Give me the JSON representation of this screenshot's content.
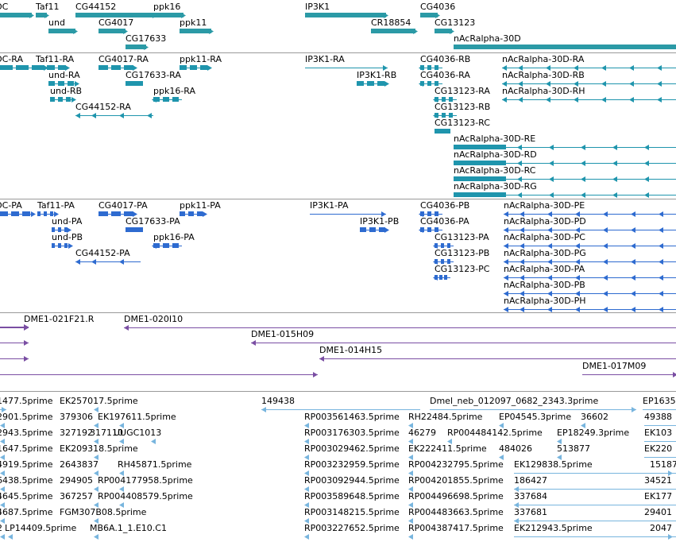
{
  "colors": {
    "gene": "#2b9aa6",
    "transcript": "#1f95ad",
    "cds": "#2e6bd0",
    "clone": "#7a4ea3",
    "est": "#78b5de",
    "separator": "#9a9a9a"
  },
  "tracks": {
    "genes": {
      "items": [
        {
          "label": "OC",
          "style": "bar"
        },
        {
          "label": "Taf11",
          "style": "bar"
        },
        {
          "label": "CG44152",
          "style": "bar"
        },
        {
          "label": "ppk16",
          "style": "bar"
        },
        {
          "label": "IP3K1",
          "style": "bar"
        },
        {
          "label": "CG4036",
          "style": "bar"
        },
        {
          "label": "und",
          "style": "bar"
        },
        {
          "label": "CG4017",
          "style": "bar"
        },
        {
          "label": "ppk11",
          "style": "bar"
        },
        {
          "label": "CR18854",
          "style": "bar"
        },
        {
          "label": "CG13123",
          "style": "bar"
        },
        {
          "label": "CG17633",
          "style": "bar"
        },
        {
          "label": "nAcRalpha-30D",
          "style": "bar"
        }
      ]
    },
    "transcripts": {
      "items": [
        {
          "label": "OC-RA",
          "style": "exons-right"
        },
        {
          "label": "Taf11-RA",
          "style": "exons-right"
        },
        {
          "label": "CG4017-RA",
          "style": "exons-right"
        },
        {
          "label": "ppk11-RA",
          "style": "exons-right"
        },
        {
          "label": "IP3K1-RA",
          "style": "line-right"
        },
        {
          "label": "CG4036-RB",
          "style": "exons-left"
        },
        {
          "label": "nAcRalpha-30D-RA",
          "style": "line-left"
        },
        {
          "label": "und-RA",
          "style": "exons-right"
        },
        {
          "label": "CG17633-RA",
          "style": "bar"
        },
        {
          "label": "IP3K1-RB",
          "style": "exons-right"
        },
        {
          "label": "CG4036-RA",
          "style": "exons-left"
        },
        {
          "label": "nAcRalpha-30D-RB",
          "style": "line-left"
        },
        {
          "label": "und-RB",
          "style": "exons-right"
        },
        {
          "label": "ppk16-RA",
          "style": "exons-left"
        },
        {
          "label": "CG13123-RA",
          "style": "exons-left"
        },
        {
          "label": "nAcRalpha-30D-RH",
          "style": "line-left"
        },
        {
          "label": "CG44152-RA",
          "style": "line-left"
        },
        {
          "label": "CG13123-RB",
          "style": "exons-left"
        },
        {
          "label": "CG13123-RC",
          "style": "bar"
        },
        {
          "label": "nAcRalpha-30D-RE",
          "style": "bar-line-left"
        },
        {
          "label": "nAcRalpha-30D-RD",
          "style": "bar-line-left"
        },
        {
          "label": "nAcRalpha-30D-RC",
          "style": "bar-line-left"
        },
        {
          "label": "nAcRalpha-30D-RG",
          "style": "bar-line-left"
        }
      ]
    },
    "proteins": {
      "items": [
        {
          "label": "OC-PA",
          "style": "exons-right"
        },
        {
          "label": "Taf11-PA",
          "style": "exons-right"
        },
        {
          "label": "CG4017-PA",
          "style": "exons-right"
        },
        {
          "label": "ppk11-PA",
          "style": "exons-right"
        },
        {
          "label": "IP3K1-PA",
          "style": "line-right"
        },
        {
          "label": "CG4036-PB",
          "style": "exons-left"
        },
        {
          "label": "nAcRalpha-30D-PE",
          "style": "line-left"
        },
        {
          "label": "und-PA",
          "style": "exons-right"
        },
        {
          "label": "CG17633-PA",
          "style": "bar"
        },
        {
          "label": "IP3K1-PB",
          "style": "exons-right"
        },
        {
          "label": "CG4036-PA",
          "style": "exons-left"
        },
        {
          "label": "nAcRalpha-30D-PD",
          "style": "line-left"
        },
        {
          "label": "und-PB",
          "style": "exons-right"
        },
        {
          "label": "ppk16-PA",
          "style": "exons-left"
        },
        {
          "label": "CG13123-PA",
          "style": "exons-left"
        },
        {
          "label": "nAcRalpha-30D-PC",
          "style": "line-left"
        },
        {
          "label": "CG44152-PA",
          "style": "line-left"
        },
        {
          "label": "CG13123-PB",
          "style": "exons-left"
        },
        {
          "label": "nAcRalpha-30D-PG",
          "style": "line-left"
        },
        {
          "label": "CG13123-PC",
          "style": "exons-left"
        },
        {
          "label": "nAcRalpha-30D-PA",
          "style": "line-left"
        },
        {
          "label": "nAcRalpha-30D-PB",
          "style": "line-left"
        },
        {
          "label": "nAcRalpha-30D-PH",
          "style": "line-left"
        }
      ]
    },
    "clones": {
      "items": [
        {
          "label": "",
          "style": "line-right"
        },
        {
          "label": "DME1-021F21.R",
          "style": "line-right"
        },
        {
          "label": "DME1-020I10",
          "style": "line-left"
        },
        {
          "label": "",
          "style": "line-right"
        },
        {
          "label": "DME1-015H09",
          "style": "line-left"
        },
        {
          "label": "",
          "style": "line-right"
        },
        {
          "label": "DME1-014H15",
          "style": "line-left"
        },
        {
          "label": "",
          "style": "line-right"
        },
        {
          "label": "DME1-017M09",
          "style": "line-right"
        }
      ]
    },
    "ests": {
      "items": [
        {
          "label": "1477.5prime",
          "style": "line-right"
        },
        {
          "label": "EK257017.5prime",
          "style": "tick-left"
        },
        {
          "label": "149438",
          "style": "line-left"
        },
        {
          "label": "Dmel_neb_012097_0682_2343.3prime",
          "style": "line-right"
        },
        {
          "label": "EP1635",
          "style": "line-right"
        },
        {
          "label": "2901.5prime",
          "style": "tick-left"
        },
        {
          "label": "379306",
          "style": "tick-left"
        },
        {
          "label": "EK197611.5prime",
          "style": "tick-left"
        },
        {
          "label": "RP003561463.5prime",
          "style": "tick-left"
        },
        {
          "label": "RH22484.5prime",
          "style": "tick-left"
        },
        {
          "label": "EP04545.3prime",
          "style": "tick-left"
        },
        {
          "label": "36602",
          "style": "tick-left"
        },
        {
          "label": "49388",
          "style": "line-right"
        },
        {
          "label": "2943.5prime",
          "style": "tick-left"
        },
        {
          "label": "327192",
          "style": "tick-left"
        },
        {
          "label": "317110",
          "style": "tick-left"
        },
        {
          "label": "UUGC1013",
          "style": "tick-left"
        },
        {
          "label": "RP003176303.5prime",
          "style": "tick-left"
        },
        {
          "label": "46279",
          "style": "tick-left"
        },
        {
          "label": "RP004484142.5prime",
          "style": "tick-left"
        },
        {
          "label": "EP18249.3prime",
          "style": "tick-left"
        },
        {
          "label": "EK103",
          "style": "line-right"
        },
        {
          "label": "1647.5prime",
          "style": "tick-left"
        },
        {
          "label": "EK209318.5prime",
          "style": "tick-left"
        },
        {
          "label": "RP003029462.5prime",
          "style": "tick-left"
        },
        {
          "label": "EK222411.5prime",
          "style": "tick-left"
        },
        {
          "label": "484026",
          "style": "tick-left"
        },
        {
          "label": "513877",
          "style": "tick-left"
        },
        {
          "label": "EK220",
          "style": "line-right"
        },
        {
          "label": "4919.5prime",
          "style": "tick-left"
        },
        {
          "label": "2643837",
          "style": "tick-left"
        },
        {
          "label": "RH45871.5prime",
          "style": "tick-left"
        },
        {
          "label": "RP003232959.5prime",
          "style": "tick-left"
        },
        {
          "label": "RP004232795.5prime",
          "style": "tick-left"
        },
        {
          "label": "EK129838.5prime",
          "style": "line-right"
        },
        {
          "label": "15187",
          "style": "line-right"
        },
        {
          "label": "6438.5prime",
          "style": "tick-left"
        },
        {
          "label": "294905",
          "style": "tick-left"
        },
        {
          "label": "RP004177958.5prime",
          "style": "tick-left"
        },
        {
          "label": "RP003092944.5prime",
          "style": "tick-left"
        },
        {
          "label": "RP004201855.5prime",
          "style": "tick-left"
        },
        {
          "label": "186427",
          "style": "line-left"
        },
        {
          "label": "34521",
          "style": "line-right"
        },
        {
          "label": "4645.5prime",
          "style": "tick-left"
        },
        {
          "label": "367257",
          "style": "tick-left"
        },
        {
          "label": "RP004408579.5prime",
          "style": "tick-left"
        },
        {
          "label": "RP003589648.5prime",
          "style": "tick-left"
        },
        {
          "label": "RP004496698.5prime",
          "style": "tick-left"
        },
        {
          "label": "337684",
          "style": "line-left"
        },
        {
          "label": "EK177",
          "style": "line-right"
        },
        {
          "label": "4687.5prime",
          "style": "tick-left"
        },
        {
          "label": "FGM307B08.5prime",
          "style": "tick-left"
        },
        {
          "label": "RP003148215.5prime",
          "style": "tick-left"
        },
        {
          "label": "RP004483663.5prime",
          "style": "tick-left"
        },
        {
          "label": "337681",
          "style": "line-left"
        },
        {
          "label": "29401",
          "style": "line-right"
        },
        {
          "label": "2",
          "style": "tick-left"
        },
        {
          "label": "LP14409.5prime",
          "style": "tick-left"
        },
        {
          "label": "MB6A.1_1.E10.C1",
          "style": "tick-left"
        },
        {
          "label": "RP003227652.5prime",
          "style": "tick-left"
        },
        {
          "label": "RP004387417.5prime",
          "style": "tick-left"
        },
        {
          "label": "EK212943.5prime",
          "style": "line-right"
        },
        {
          "label": "2047",
          "style": "line-right"
        }
      ]
    }
  }
}
